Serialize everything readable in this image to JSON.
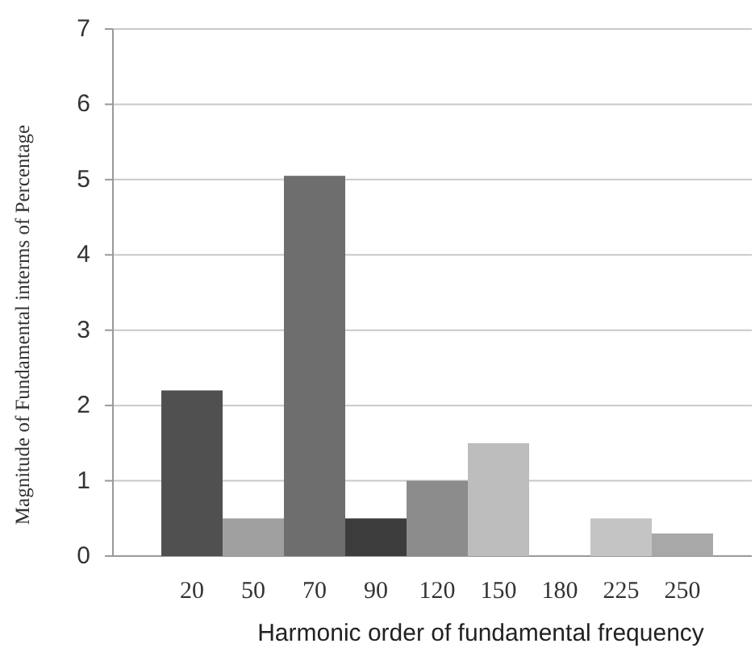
{
  "chart_data": {
    "type": "bar",
    "xlabel": "Harmonic order of fundamental frequency",
    "ylabel": "Magnitude of Fundamental interms of Percentage",
    "categories": [
      "20",
      "50",
      "70",
      "90",
      "120",
      "150",
      "180",
      "225",
      "250"
    ],
    "values": [
      2.2,
      0.5,
      5.05,
      0.5,
      1.0,
      1.5,
      null,
      0.5,
      0.3
    ],
    "colors": [
      "#505050",
      "#a0a0a0",
      "#6e6e6e",
      "#3c3c3c",
      "#8c8c8c",
      "#bdbdbd",
      null,
      "#c4c4c4",
      "#a8a8a8"
    ],
    "ylim": [
      0,
      7
    ],
    "yticks": [
      0,
      1,
      2,
      3,
      4,
      5,
      6,
      7
    ],
    "grid": "y"
  }
}
